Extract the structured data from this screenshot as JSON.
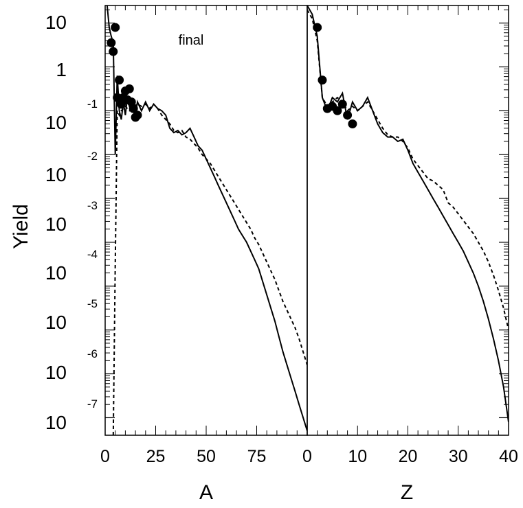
{
  "chart_data": [
    {
      "type": "line",
      "panel": "A",
      "xlabel": "A",
      "ylabel": "Yield",
      "annotation": "final",
      "xlim": [
        0,
        100
      ],
      "ylim_log10": [
        -8.4,
        1.4
      ],
      "x_ticks": [
        "0",
        "25",
        "50",
        "75"
      ],
      "y_log": true,
      "y_tick_labels": [
        {
          "base": "10",
          "exp": ""
        },
        {
          "base": "1",
          "exp": ""
        },
        {
          "base": "10",
          "exp": "-1"
        },
        {
          "base": "10",
          "exp": "-2"
        },
        {
          "base": "10",
          "exp": "-3"
        },
        {
          "base": "10",
          "exp": "-4"
        },
        {
          "base": "10",
          "exp": "-5"
        },
        {
          "base": "10",
          "exp": "-6"
        },
        {
          "base": "10",
          "exp": "-7"
        }
      ],
      "series": [
        {
          "style": "solid",
          "points": [
            [
              1,
              1.4
            ],
            [
              2,
              0.9
            ],
            [
              3,
              0.7
            ],
            [
              4,
              0.55
            ],
            [
              5,
              -2.0
            ],
            [
              6,
              -0.2
            ],
            [
              7,
              -1.0
            ],
            [
              8,
              -1.2
            ],
            [
              9,
              -0.8
            ],
            [
              10,
              -1.1
            ],
            [
              11,
              -0.7
            ],
            [
              12,
              -0.9
            ],
            [
              13,
              -1.0
            ],
            [
              14,
              -0.8
            ],
            [
              15,
              -1.1
            ],
            [
              16,
              -0.8
            ],
            [
              18,
              -1.0
            ],
            [
              20,
              -0.8
            ],
            [
              22,
              -1.0
            ],
            [
              24,
              -0.85
            ],
            [
              26,
              -0.95
            ],
            [
              28,
              -1.0
            ],
            [
              30,
              -1.1
            ],
            [
              32,
              -1.4
            ],
            [
              34,
              -1.5
            ],
            [
              36,
              -1.45
            ],
            [
              38,
              -1.55
            ],
            [
              40,
              -1.5
            ],
            [
              42,
              -1.4
            ],
            [
              44,
              -1.6
            ],
            [
              46,
              -1.8
            ],
            [
              48,
              -1.9
            ],
            [
              50,
              -2.1
            ],
            [
              52,
              -2.3
            ],
            [
              54,
              -2.5
            ],
            [
              56,
              -2.7
            ],
            [
              58,
              -2.9
            ],
            [
              60,
              -3.1
            ],
            [
              62,
              -3.3
            ],
            [
              64,
              -3.5
            ],
            [
              66,
              -3.7
            ],
            [
              68,
              -3.85
            ],
            [
              70,
              -4.0
            ],
            [
              72,
              -4.2
            ],
            [
              74,
              -4.4
            ],
            [
              76,
              -4.6
            ],
            [
              78,
              -4.9
            ],
            [
              80,
              -5.2
            ],
            [
              82,
              -5.5
            ],
            [
              84,
              -5.8
            ],
            [
              86,
              -6.15
            ],
            [
              88,
              -6.5
            ],
            [
              90,
              -6.8
            ],
            [
              92,
              -7.1
            ],
            [
              94,
              -7.4
            ],
            [
              96,
              -7.7
            ],
            [
              98,
              -8.0
            ],
            [
              100,
              -8.3
            ]
          ]
        },
        {
          "style": "dashed",
          "points": [
            [
              4,
              -8.4
            ],
            [
              5,
              -4.5
            ],
            [
              6,
              -1.0
            ],
            [
              7,
              -1.1
            ],
            [
              8,
              -1.0
            ],
            [
              10,
              -0.9
            ],
            [
              12,
              -1.0
            ],
            [
              14,
              -0.9
            ],
            [
              16,
              -0.85
            ],
            [
              18,
              -0.9
            ],
            [
              20,
              -0.85
            ],
            [
              22,
              -0.95
            ],
            [
              24,
              -0.85
            ],
            [
              26,
              -0.95
            ],
            [
              28,
              -1.1
            ],
            [
              30,
              -1.2
            ],
            [
              32,
              -1.3
            ],
            [
              34,
              -1.45
            ],
            [
              36,
              -1.5
            ],
            [
              38,
              -1.45
            ],
            [
              40,
              -1.6
            ],
            [
              42,
              -1.65
            ],
            [
              44,
              -1.75
            ],
            [
              46,
              -1.85
            ],
            [
              48,
              -2.0
            ],
            [
              50,
              -2.1
            ],
            [
              52,
              -2.2
            ],
            [
              54,
              -2.35
            ],
            [
              56,
              -2.5
            ],
            [
              58,
              -2.65
            ],
            [
              60,
              -2.8
            ],
            [
              62,
              -2.95
            ],
            [
              64,
              -3.1
            ],
            [
              66,
              -3.25
            ],
            [
              68,
              -3.4
            ],
            [
              70,
              -3.55
            ],
            [
              72,
              -3.7
            ],
            [
              74,
              -3.9
            ],
            [
              76,
              -4.05
            ],
            [
              78,
              -4.25
            ],
            [
              80,
              -4.45
            ],
            [
              82,
              -4.65
            ],
            [
              84,
              -4.85
            ],
            [
              86,
              -5.1
            ],
            [
              88,
              -5.35
            ],
            [
              90,
              -5.55
            ],
            [
              92,
              -5.75
            ],
            [
              94,
              -5.95
            ],
            [
              96,
              -6.2
            ],
            [
              98,
              -6.5
            ],
            [
              100,
              -6.8
            ]
          ]
        },
        {
          "style": "markers",
          "points": [
            [
              3,
              0.55
            ],
            [
              4,
              0.35
            ],
            [
              5,
              0.9
            ],
            [
              6,
              -0.7
            ],
            [
              7,
              -0.3
            ],
            [
              8,
              -0.85
            ],
            [
              9,
              -0.7
            ],
            [
              10,
              -0.55
            ],
            [
              11,
              -0.75
            ],
            [
              12,
              -0.5
            ],
            [
              13,
              -0.8
            ],
            [
              14,
              -0.95
            ],
            [
              15,
              -1.15
            ],
            [
              16,
              -1.1
            ]
          ]
        }
      ]
    },
    {
      "type": "line",
      "panel": "Z",
      "xlabel": "Z",
      "xlim": [
        0,
        40
      ],
      "ylim_log10": [
        -8.4,
        1.4
      ],
      "x_ticks": [
        "0",
        "10",
        "20",
        "30",
        "40"
      ],
      "y_log": true,
      "series": [
        {
          "style": "solid",
          "points": [
            [
              0,
              1.4
            ],
            [
              1,
              1.2
            ],
            [
              2,
              0.7
            ],
            [
              3,
              -0.7
            ],
            [
              4,
              -1.0
            ],
            [
              5,
              -0.7
            ],
            [
              6,
              -0.8
            ],
            [
              7,
              -0.6
            ],
            [
              8,
              -1.2
            ],
            [
              9,
              -0.8
            ],
            [
              10,
              -1.0
            ],
            [
              11,
              -0.9
            ],
            [
              12,
              -0.7
            ],
            [
              13,
              -1.0
            ],
            [
              14,
              -1.3
            ],
            [
              15,
              -1.5
            ],
            [
              16,
              -1.6
            ],
            [
              17,
              -1.6
            ],
            [
              18,
              -1.7
            ],
            [
              19,
              -1.65
            ],
            [
              20,
              -1.9
            ],
            [
              21,
              -2.2
            ],
            [
              22,
              -2.4
            ],
            [
              23,
              -2.6
            ],
            [
              24,
              -2.8
            ],
            [
              25,
              -3.0
            ],
            [
              26,
              -3.2
            ],
            [
              27,
              -3.4
            ],
            [
              28,
              -3.6
            ],
            [
              29,
              -3.8
            ],
            [
              30,
              -4.0
            ],
            [
              31,
              -4.2
            ],
            [
              32,
              -4.45
            ],
            [
              33,
              -4.7
            ],
            [
              34,
              -5.0
            ],
            [
              35,
              -5.35
            ],
            [
              36,
              -5.75
            ],
            [
              37,
              -6.2
            ],
            [
              38,
              -6.7
            ],
            [
              39,
              -7.3
            ],
            [
              40,
              -8.1
            ]
          ]
        },
        {
          "style": "dashed",
          "points": [
            [
              0,
              1.3
            ],
            [
              1,
              1.1
            ],
            [
              2,
              0.6
            ],
            [
              3,
              -0.7
            ],
            [
              4,
              -0.9
            ],
            [
              5,
              -0.8
            ],
            [
              6,
              -0.7
            ],
            [
              7,
              -0.8
            ],
            [
              8,
              -1.0
            ],
            [
              9,
              -0.9
            ],
            [
              10,
              -1.0
            ],
            [
              11,
              -0.9
            ],
            [
              12,
              -0.8
            ],
            [
              13,
              -1.0
            ],
            [
              14,
              -1.2
            ],
            [
              15,
              -1.4
            ],
            [
              16,
              -1.55
            ],
            [
              17,
              -1.6
            ],
            [
              18,
              -1.6
            ],
            [
              19,
              -1.7
            ],
            [
              20,
              -1.85
            ],
            [
              21,
              -2.1
            ],
            [
              22,
              -2.25
            ],
            [
              23,
              -2.4
            ],
            [
              24,
              -2.55
            ],
            [
              25,
              -2.6
            ],
            [
              26,
              -2.7
            ],
            [
              27,
              -2.8
            ],
            [
              28,
              -3.1
            ],
            [
              29,
              -3.2
            ],
            [
              30,
              -3.35
            ],
            [
              31,
              -3.5
            ],
            [
              32,
              -3.65
            ],
            [
              33,
              -3.8
            ],
            [
              34,
              -4.0
            ],
            [
              35,
              -4.2
            ],
            [
              36,
              -4.45
            ],
            [
              37,
              -4.75
            ],
            [
              38,
              -5.1
            ],
            [
              39,
              -5.5
            ],
            [
              40,
              -6.0
            ]
          ]
        },
        {
          "style": "markers",
          "points": [
            [
              2,
              0.9
            ],
            [
              3,
              -0.3
            ],
            [
              4,
              -0.95
            ],
            [
              5,
              -0.9
            ],
            [
              6,
              -1.0
            ],
            [
              7,
              -0.85
            ],
            [
              8,
              -1.1
            ],
            [
              9,
              -1.3
            ]
          ]
        }
      ]
    }
  ]
}
